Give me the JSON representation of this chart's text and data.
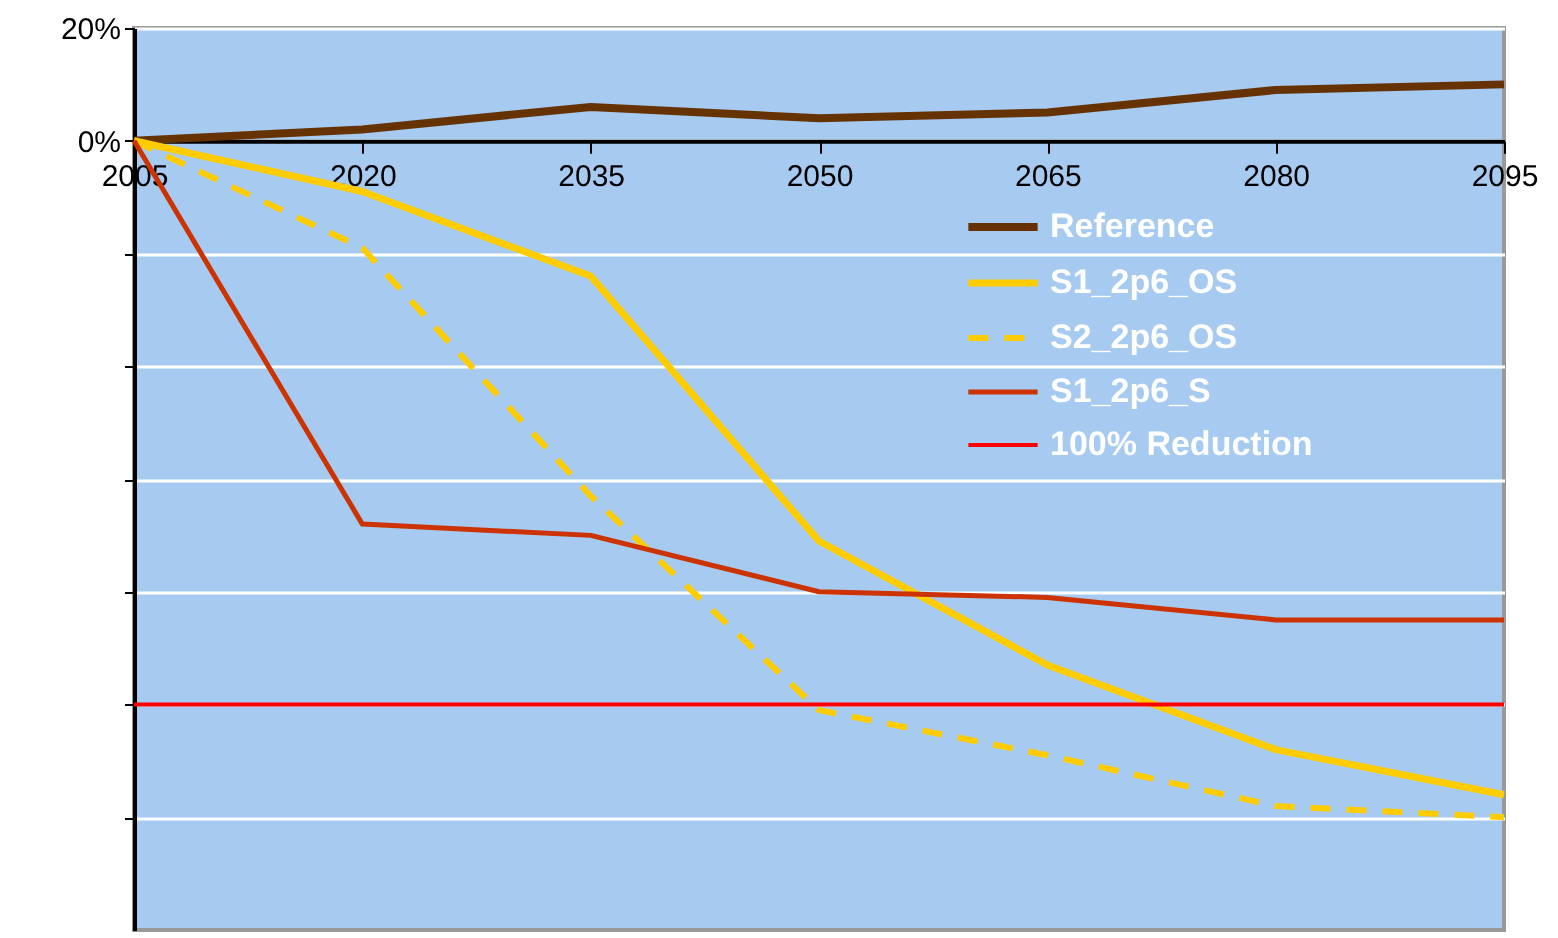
{
  "chart_data": {
    "type": "line",
    "x": [
      2005,
      2020,
      2035,
      2050,
      2065,
      2080,
      2095
    ],
    "xlim": [
      2005,
      2095
    ],
    "xticks": [
      2005,
      2020,
      2035,
      2050,
      2065,
      2080,
      2095
    ],
    "ylim": [
      -140,
      20
    ],
    "yticks": [
      {
        "value": 20,
        "label": "20%"
      },
      {
        "value": 0,
        "label": "0%"
      },
      {
        "value": -20,
        "label": null
      },
      {
        "value": -40,
        "label": null
      },
      {
        "value": -60,
        "label": null
      },
      {
        "value": -80,
        "label": null
      },
      {
        "value": -100,
        "label": null
      },
      {
        "value": -120,
        "label": null
      }
    ],
    "grid": "y",
    "legend": "top right",
    "marker": "none",
    "series": [
      {
        "name": "Reference",
        "color": "#663300",
        "line_style": "solid",
        "values": [
          0,
          2,
          6,
          4,
          5,
          9,
          10
        ]
      },
      {
        "name": "S1_2p6_OS",
        "color": "#ffcc00",
        "line_style": "solid",
        "values": [
          0,
          -9,
          -24,
          -71,
          -93,
          -108,
          -116
        ]
      },
      {
        "name": "S2_2p6_OS",
        "color": "#ffcc00",
        "line_style": "dashed",
        "values": [
          0,
          -19,
          -63,
          -101,
          -109,
          -118,
          -120
        ]
      },
      {
        "name": "S1_2p6_S",
        "color": "#cc3300",
        "line_style": "solid",
        "values": [
          0,
          -68,
          -70,
          -80,
          -81,
          -85,
          -85
        ]
      },
      {
        "name": "100% Reduction",
        "color": "#ff0000",
        "line_style": "solid",
        "values": [
          -100,
          -100,
          -100,
          -100,
          -100,
          -100,
          -100
        ]
      }
    ]
  }
}
